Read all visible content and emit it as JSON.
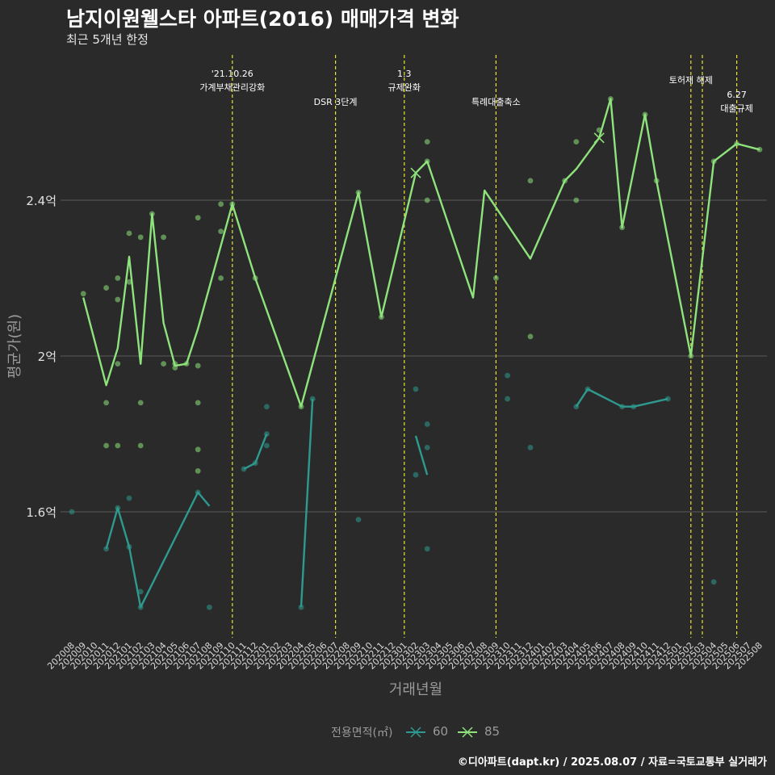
{
  "header": {
    "title": "남지이원웰스타 아파트(2016) 매매가격 변화",
    "subtitle": "최근 5개년 한정"
  },
  "caption": "©디아파트(dapt.kr) / 2025.08.07 / 자료=국토교통부 실거래가",
  "legend": {
    "title": "전용면적(㎡)",
    "items": [
      {
        "label": "60",
        "color": "#2aa198"
      },
      {
        "label": "85",
        "color": "#8ee37c"
      }
    ]
  },
  "colors": {
    "background": "#2a2a2a",
    "grid": "#5a5a5a",
    "event_line": "#e6e62e",
    "series_60": "#2e9a8f",
    "series_85": "#8ee37c"
  },
  "chart_data": {
    "type": "line",
    "xlabel": "거래년월",
    "ylabel": "평균가(원)",
    "y_unit": "억원",
    "ylim": [
      1.24,
      2.85
    ],
    "yticks": [
      {
        "value": 1.6,
        "label": "1.6억"
      },
      {
        "value": 2.0,
        "label": "2억"
      },
      {
        "value": 2.4,
        "label": "2.4억"
      }
    ],
    "x": [
      "202008",
      "202009",
      "202010",
      "202011",
      "202012",
      "202101",
      "202102",
      "202103",
      "202104",
      "202105",
      "202106",
      "202107",
      "202108",
      "202109",
      "202110",
      "202111",
      "202112",
      "202201",
      "202202",
      "202203",
      "202204",
      "202205",
      "202206",
      "202207",
      "202208",
      "202209",
      "202210",
      "202211",
      "202212",
      "202301",
      "202302",
      "202303",
      "202304",
      "202305",
      "202306",
      "202307",
      "202308",
      "202309",
      "202310",
      "202311",
      "202312",
      "202401",
      "202402",
      "202403",
      "202404",
      "202405",
      "202406",
      "202407",
      "202408",
      "202409",
      "202410",
      "202411",
      "202412",
      "202501",
      "202502",
      "202503",
      "202504",
      "202505",
      "202506",
      "202507",
      "202508"
    ],
    "events": [
      {
        "x": "202110",
        "label_lines": [
          "'21.10.26",
          "가계부채관리강화"
        ]
      },
      {
        "x": "202207",
        "label_lines": [
          "DSR 3단계"
        ]
      },
      {
        "x": "202301",
        "label_lines": [
          "1.3",
          "규제완화"
        ]
      },
      {
        "x": "202309",
        "label_lines": [
          "특례대출축소"
        ]
      },
      {
        "x": "202502",
        "label_lines": [
          "토허제 해제"
        ]
      },
      {
        "x": "202503",
        "label_lines": []
      },
      {
        "x": "202506",
        "label_lines": [
          "6.27",
          "대출규제"
        ]
      }
    ],
    "series": [
      {
        "name": "60",
        "line": [
          [
            "202011",
            1.505
          ],
          [
            "202012",
            1.61
          ],
          [
            "202101",
            1.51
          ],
          [
            "202102",
            1.355
          ],
          [
            "202107",
            1.65
          ],
          [
            "202108",
            1.615
          ],
          null,
          [
            "202111",
            1.71
          ],
          [
            "202112",
            1.725
          ],
          [
            "202201",
            1.8
          ],
          null,
          [
            "202204",
            1.355
          ],
          [
            "202205",
            1.89
          ],
          null,
          [
            "202302",
            1.795
          ],
          [
            "202303",
            1.695
          ],
          null,
          [
            "202404",
            1.87
          ],
          [
            "202405",
            1.915
          ],
          [
            "202408",
            1.87
          ],
          [
            "202409",
            1.87
          ],
          [
            "202412",
            1.89
          ]
        ],
        "points": [
          [
            "202008",
            1.6
          ],
          [
            "202011",
            1.505
          ],
          [
            "202012",
            1.61
          ],
          [
            "202101",
            1.635
          ],
          [
            "202101",
            1.51
          ],
          [
            "202102",
            1.355
          ],
          [
            "202102",
            1.395
          ],
          [
            "202107",
            1.65
          ],
          [
            "202108",
            1.355
          ],
          [
            "202111",
            1.71
          ],
          [
            "202112",
            1.725
          ],
          [
            "202201",
            1.77
          ],
          [
            "202201",
            1.8
          ],
          [
            "202201",
            1.87
          ],
          [
            "202204",
            1.355
          ],
          [
            "202205",
            1.89
          ],
          [
            "202209",
            1.58
          ],
          [
            "202302",
            1.695
          ],
          [
            "202302",
            1.915
          ],
          [
            "202303",
            1.505
          ],
          [
            "202303",
            1.765
          ],
          [
            "202303",
            1.825
          ],
          [
            "202310",
            1.95
          ],
          [
            "202310",
            1.89
          ],
          [
            "202312",
            1.765
          ],
          [
            "202504",
            1.42
          ],
          [
            "202404",
            1.87
          ],
          [
            "202405",
            1.915
          ],
          [
            "202408",
            1.87
          ],
          [
            "202409",
            1.87
          ],
          [
            "202412",
            1.89
          ]
        ],
        "markers": []
      },
      {
        "name": "85",
        "line": [
          [
            "202009",
            2.15
          ],
          [
            "202011",
            1.925
          ],
          [
            "202012",
            2.02
          ],
          [
            "202101",
            2.255
          ],
          [
            "202102",
            1.98
          ],
          [
            "202103",
            2.365
          ],
          [
            "202104",
            2.085
          ],
          [
            "202105",
            1.975
          ],
          [
            "202106",
            1.98
          ],
          [
            "202107",
            2.07
          ],
          [
            "202110",
            2.39
          ],
          [
            "202112",
            2.2
          ],
          [
            "202204",
            1.87
          ],
          [
            "202209",
            2.42
          ],
          [
            "202211",
            2.1
          ],
          [
            "202302",
            2.47
          ],
          [
            "202303",
            2.5
          ],
          [
            "202307",
            2.15
          ],
          [
            "202308",
            2.425
          ],
          [
            "202312",
            2.25
          ],
          [
            "202403",
            2.45
          ],
          [
            "202404",
            2.48
          ],
          [
            "202406",
            2.56
          ],
          [
            "202407",
            2.66
          ],
          [
            "202408",
            2.33
          ],
          [
            "202410",
            2.62
          ],
          [
            "202411",
            2.45
          ],
          [
            "202502",
            2.0
          ],
          [
            "202504",
            2.5
          ],
          [
            "202506",
            2.545
          ],
          [
            "202508",
            2.53
          ]
        ],
        "points": [
          [
            "202009",
            2.16
          ],
          [
            "202011",
            2.175
          ],
          [
            "202011",
            1.88
          ],
          [
            "202011",
            1.77
          ],
          [
            "202012",
            2.2
          ],
          [
            "202012",
            2.145
          ],
          [
            "202012",
            1.98
          ],
          [
            "202012",
            1.77
          ],
          [
            "202101",
            2.19
          ],
          [
            "202101",
            2.315
          ],
          [
            "202102",
            2.305
          ],
          [
            "202102",
            1.88
          ],
          [
            "202102",
            1.77
          ],
          [
            "202103",
            2.365
          ],
          [
            "202104",
            2.305
          ],
          [
            "202104",
            1.98
          ],
          [
            "202105",
            1.97
          ],
          [
            "202105",
            1.98
          ],
          [
            "202106",
            1.98
          ],
          [
            "202107",
            2.355
          ],
          [
            "202107",
            1.975
          ],
          [
            "202107",
            1.88
          ],
          [
            "202107",
            1.76
          ],
          [
            "202107",
            1.705
          ],
          [
            "202109",
            2.32
          ],
          [
            "202109",
            2.39
          ],
          [
            "202109",
            2.2
          ],
          [
            "202110",
            2.39
          ],
          [
            "202112",
            2.2
          ],
          [
            "202204",
            1.87
          ],
          [
            "202209",
            2.42
          ],
          [
            "202211",
            2.1
          ],
          [
            "202303",
            2.4
          ],
          [
            "202303",
            2.5
          ],
          [
            "202303",
            2.55
          ],
          [
            "202309",
            2.2
          ],
          [
            "202312",
            2.05
          ],
          [
            "202312",
            2.45
          ],
          [
            "202403",
            2.45
          ],
          [
            "202404",
            2.4
          ],
          [
            "202404",
            2.55
          ],
          [
            "202406",
            2.58
          ],
          [
            "202407",
            2.66
          ],
          [
            "202408",
            2.33
          ],
          [
            "202410",
            2.62
          ],
          [
            "202411",
            2.45
          ],
          [
            "202502",
            2.0
          ],
          [
            "202504",
            2.5
          ],
          [
            "202506",
            2.545
          ],
          [
            "202508",
            2.53
          ]
        ],
        "markers": [
          [
            "202302",
            2.47
          ],
          [
            "202406",
            2.56
          ]
        ]
      }
    ]
  }
}
